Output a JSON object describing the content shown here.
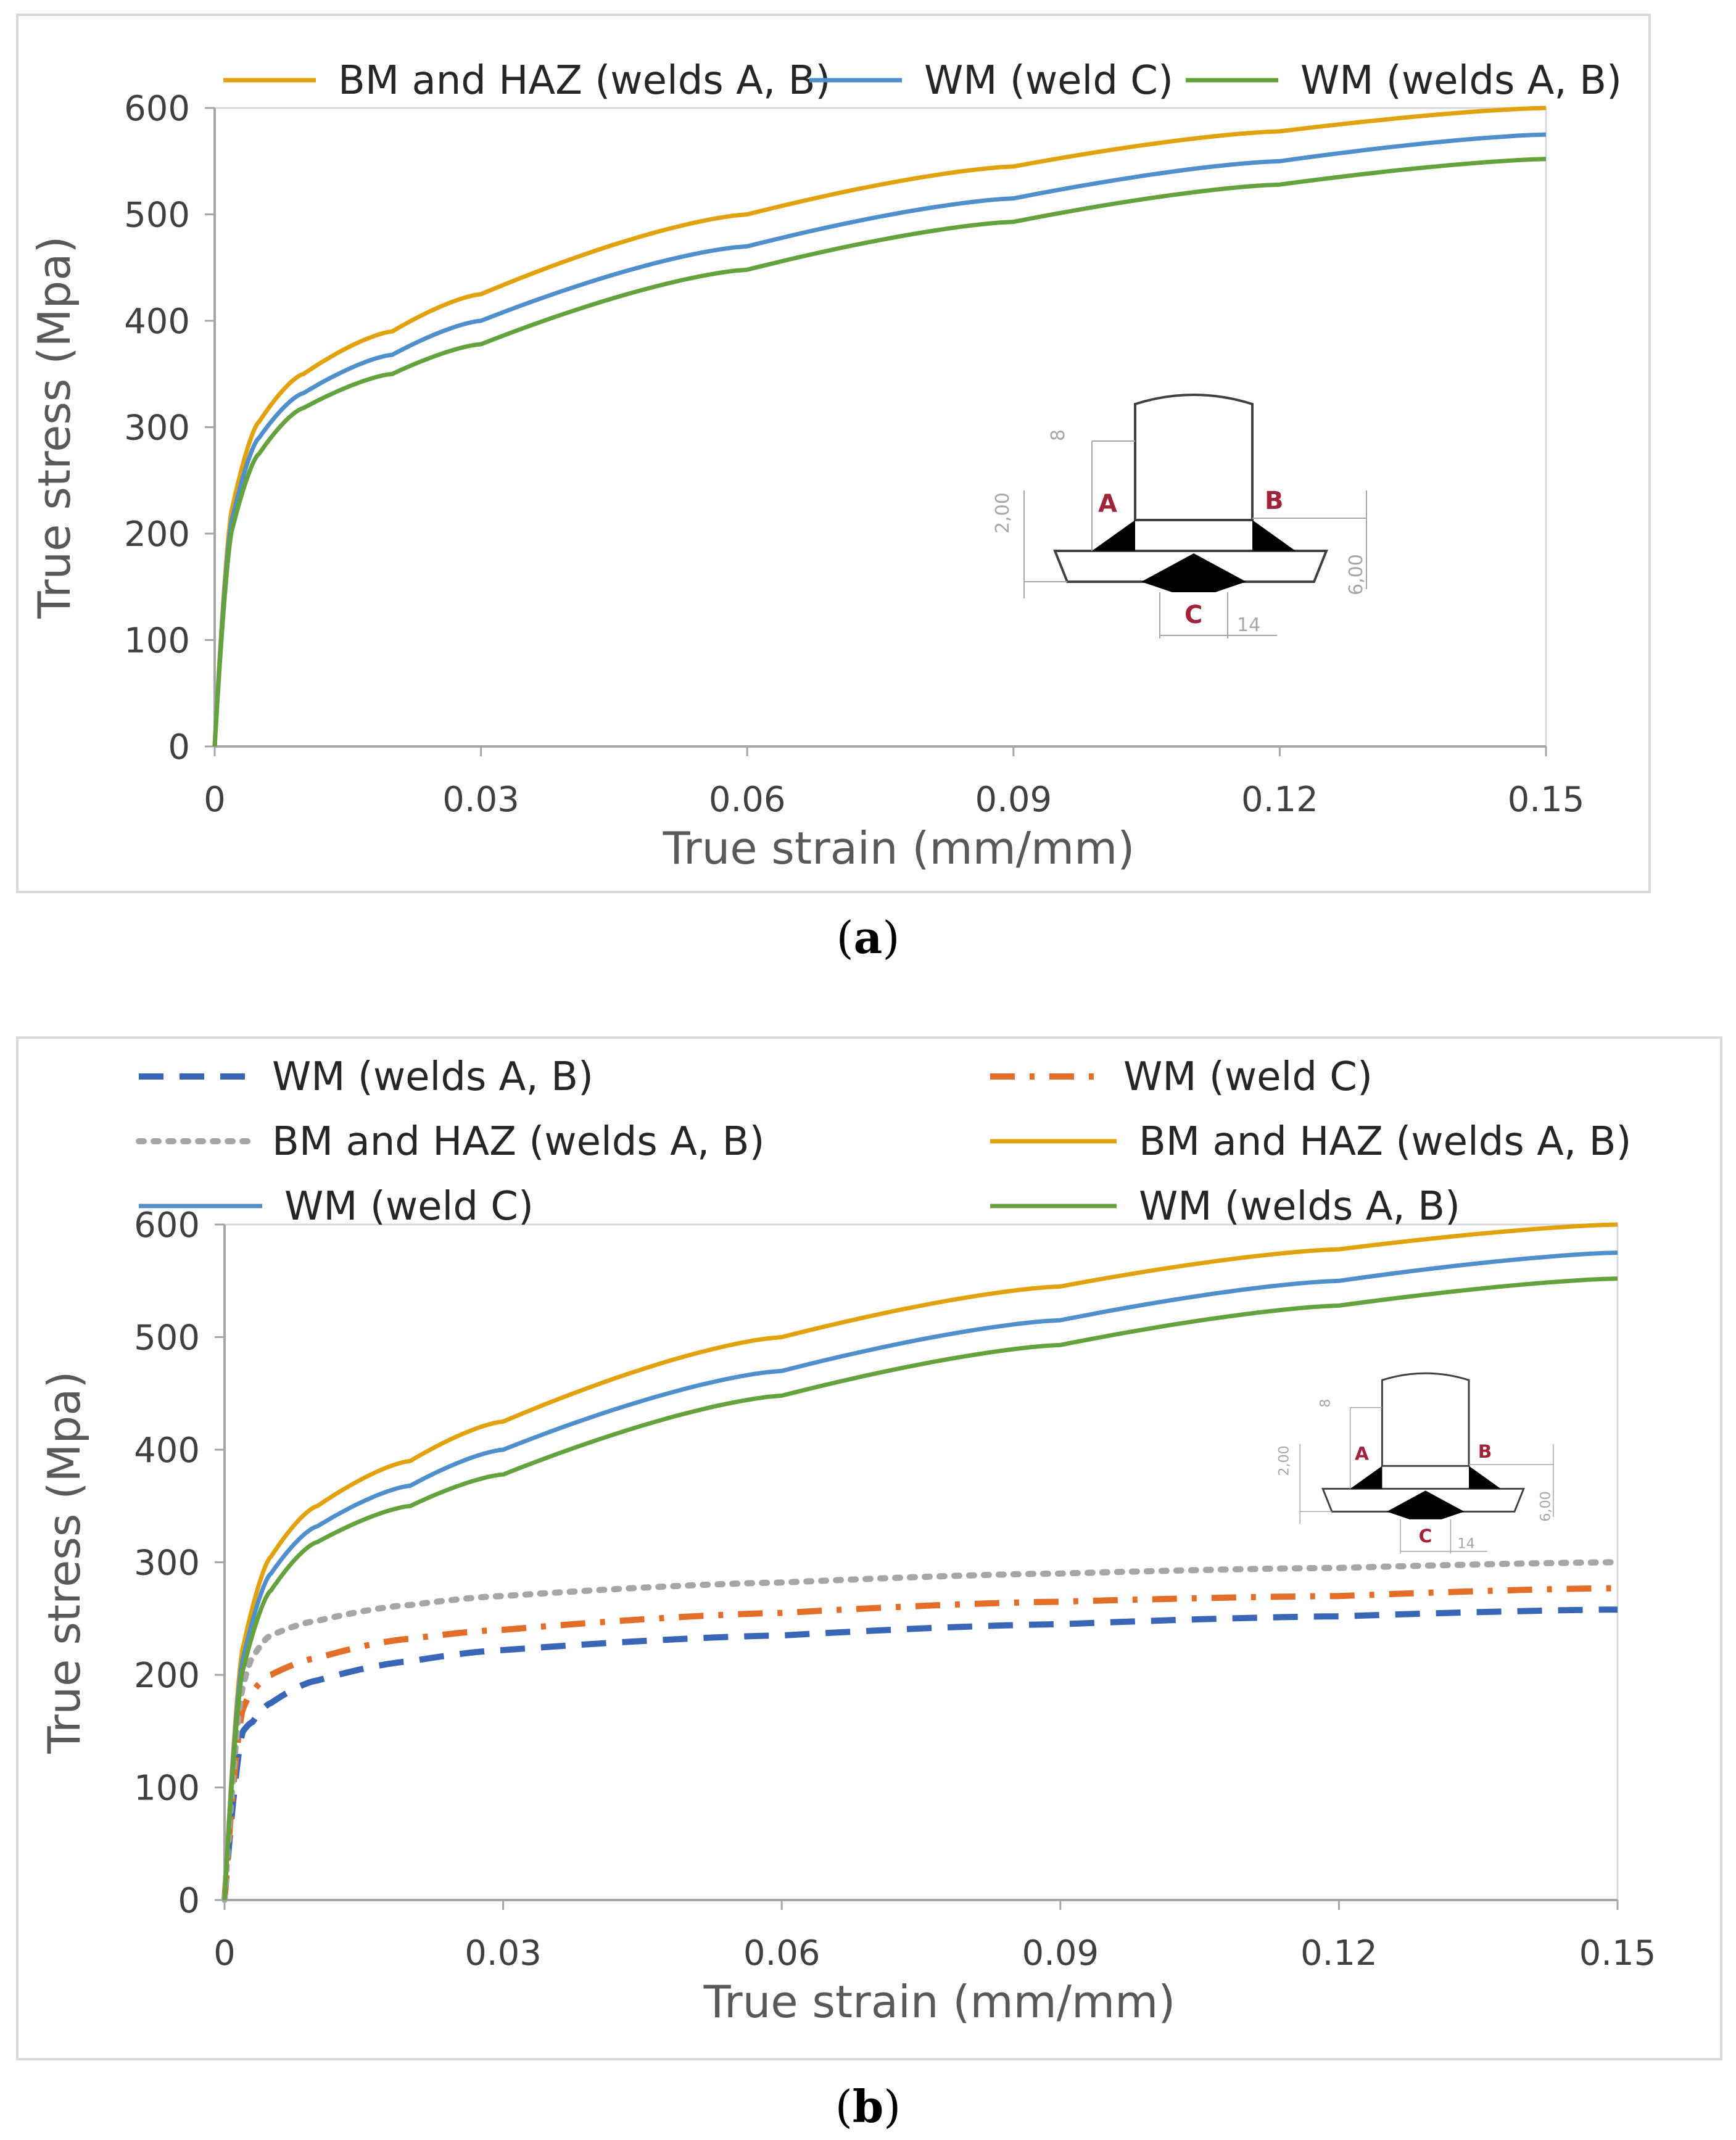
{
  "charts": [
    {
      "caption_letter": "a",
      "chart_data": {
        "type": "line",
        "xlabel": "True strain (mm/mm)",
        "ylabel": "True stress (Mpa)",
        "xlim": [
          0,
          0.15
        ],
        "ylim": [
          0,
          600
        ],
        "xticks": [
          "0",
          "0.03",
          "0.06",
          "0.09",
          "0.12",
          "0.15"
        ],
        "yticks": [
          "0",
          "100",
          "200",
          "300",
          "400",
          "500",
          "600"
        ],
        "legend_position": "top",
        "series": [
          {
            "name": "BM and HAZ (welds A, B)",
            "color": "#E2A20E",
            "style": "solid",
            "x": [
              0,
              0.002,
              0.005,
              0.01,
              0.02,
              0.03,
              0.06,
              0.09,
              0.12,
              0.15
            ],
            "y": [
              0,
              225,
              305,
              350,
              390,
              425,
              500,
              545,
              578,
              600
            ]
          },
          {
            "name": "WM (weld C)",
            "color": "#4F8FCB",
            "style": "solid",
            "x": [
              0,
              0.002,
              0.005,
              0.01,
              0.02,
              0.03,
              0.06,
              0.09,
              0.12,
              0.15
            ],
            "y": [
              0,
              215,
              290,
              332,
              368,
              400,
              470,
              515,
              550,
              575
            ]
          },
          {
            "name": "WM (welds A, B)",
            "color": "#64A23E",
            "style": "solid",
            "x": [
              0,
              0.002,
              0.005,
              0.01,
              0.02,
              0.03,
              0.06,
              0.09,
              0.12,
              0.15
            ],
            "y": [
              0,
              205,
              275,
              318,
              350,
              378,
              448,
              493,
              528,
              552
            ]
          }
        ]
      },
      "inset": {
        "dim_8": "8",
        "dim_200": "2,00",
        "dim_600": "6,00",
        "dim_14": "14",
        "label_a": "A",
        "label_b": "B",
        "label_c": "C"
      }
    },
    {
      "caption_letter": "b",
      "chart_data": {
        "type": "line",
        "xlabel": "True strain (mm/mm)",
        "ylabel": "True stress (Mpa)",
        "xlim": [
          0,
          0.15
        ],
        "ylim": [
          0,
          600
        ],
        "xticks": [
          "0",
          "0.03",
          "0.06",
          "0.09",
          "0.12",
          "0.15"
        ],
        "yticks": [
          "0",
          "100",
          "200",
          "300",
          "400",
          "500",
          "600"
        ],
        "legend_position": "top",
        "series": [
          {
            "name": "WM (welds A, B)",
            "color": "#3A66B8",
            "style": "dashed",
            "x": [
              0,
              0.002,
              0.003,
              0.005,
              0.01,
              0.02,
              0.03,
              0.06,
              0.09,
              0.12,
              0.15
            ],
            "y": [
              0,
              150,
              158,
              175,
              195,
              212,
              222,
              235,
              245,
              252,
              258
            ]
          },
          {
            "name": "WM (weld C)",
            "color": "#E26E2A",
            "style": "dashdot",
            "x": [
              0,
              0.002,
              0.003,
              0.005,
              0.01,
              0.02,
              0.03,
              0.06,
              0.09,
              0.12,
              0.15
            ],
            "y": [
              0,
              170,
              185,
              200,
              215,
              232,
              240,
              255,
              265,
              270,
              277
            ]
          },
          {
            "name": "BM and HAZ (welds A, B)",
            "color": "#A6A6A6",
            "style": "dotted",
            "x": [
              0,
              0.002,
              0.003,
              0.005,
              0.01,
              0.02,
              0.03,
              0.06,
              0.09,
              0.12,
              0.15
            ],
            "y": [
              0,
              190,
              215,
              235,
              248,
              262,
              270,
              282,
              290,
              295,
              300
            ]
          },
          {
            "name": "BM and HAZ (welds A, B)",
            "color": "#E2A20E",
            "style": "solid",
            "x": [
              0,
              0.002,
              0.005,
              0.01,
              0.02,
              0.03,
              0.06,
              0.09,
              0.12,
              0.15
            ],
            "y": [
              0,
              225,
              305,
              350,
              390,
              425,
              500,
              545,
              578,
              600
            ]
          },
          {
            "name": "WM (weld C)",
            "color": "#4F8FCB",
            "style": "solid",
            "x": [
              0,
              0.002,
              0.005,
              0.01,
              0.02,
              0.03,
              0.06,
              0.09,
              0.12,
              0.15
            ],
            "y": [
              0,
              215,
              290,
              332,
              368,
              400,
              470,
              515,
              550,
              575
            ]
          },
          {
            "name": "WM (welds A, B)",
            "color": "#64A23E",
            "style": "solid",
            "x": [
              0,
              0.002,
              0.005,
              0.01,
              0.02,
              0.03,
              0.06,
              0.09,
              0.12,
              0.15
            ],
            "y": [
              0,
              205,
              275,
              318,
              350,
              378,
              448,
              493,
              528,
              552
            ]
          }
        ]
      },
      "inset": {
        "dim_8": "8",
        "dim_200": "2,00",
        "dim_600": "6,00",
        "dim_14": "14",
        "label_a": "A",
        "label_b": "B",
        "label_c": "C"
      }
    }
  ]
}
